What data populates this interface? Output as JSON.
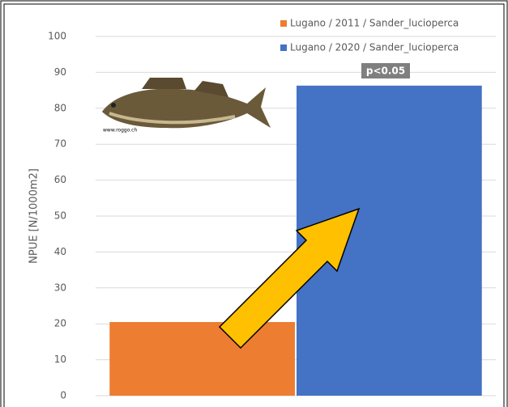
{
  "chart_data": {
    "type": "bar",
    "y_label": "NPUE [N/1000m2]",
    "categories": [
      null
    ],
    "series": [
      {
        "name": "Lugano / 2011 / Sander_lucioperca",
        "color": "#ed7d31",
        "values": [
          20.5
        ]
      },
      {
        "name": "Lugano / 2020 / Sander_lucioperca",
        "color": "#4472c4",
        "values": [
          86.3
        ]
      }
    ],
    "ylim": [
      0,
      100
    ],
    "yticks": [
      0,
      10,
      20,
      30,
      40,
      50,
      60,
      70,
      80,
      90,
      100
    ],
    "grid": true,
    "legend": "top-right",
    "annotation": "p<0.05",
    "image_credit": "www.roggo.ch"
  }
}
